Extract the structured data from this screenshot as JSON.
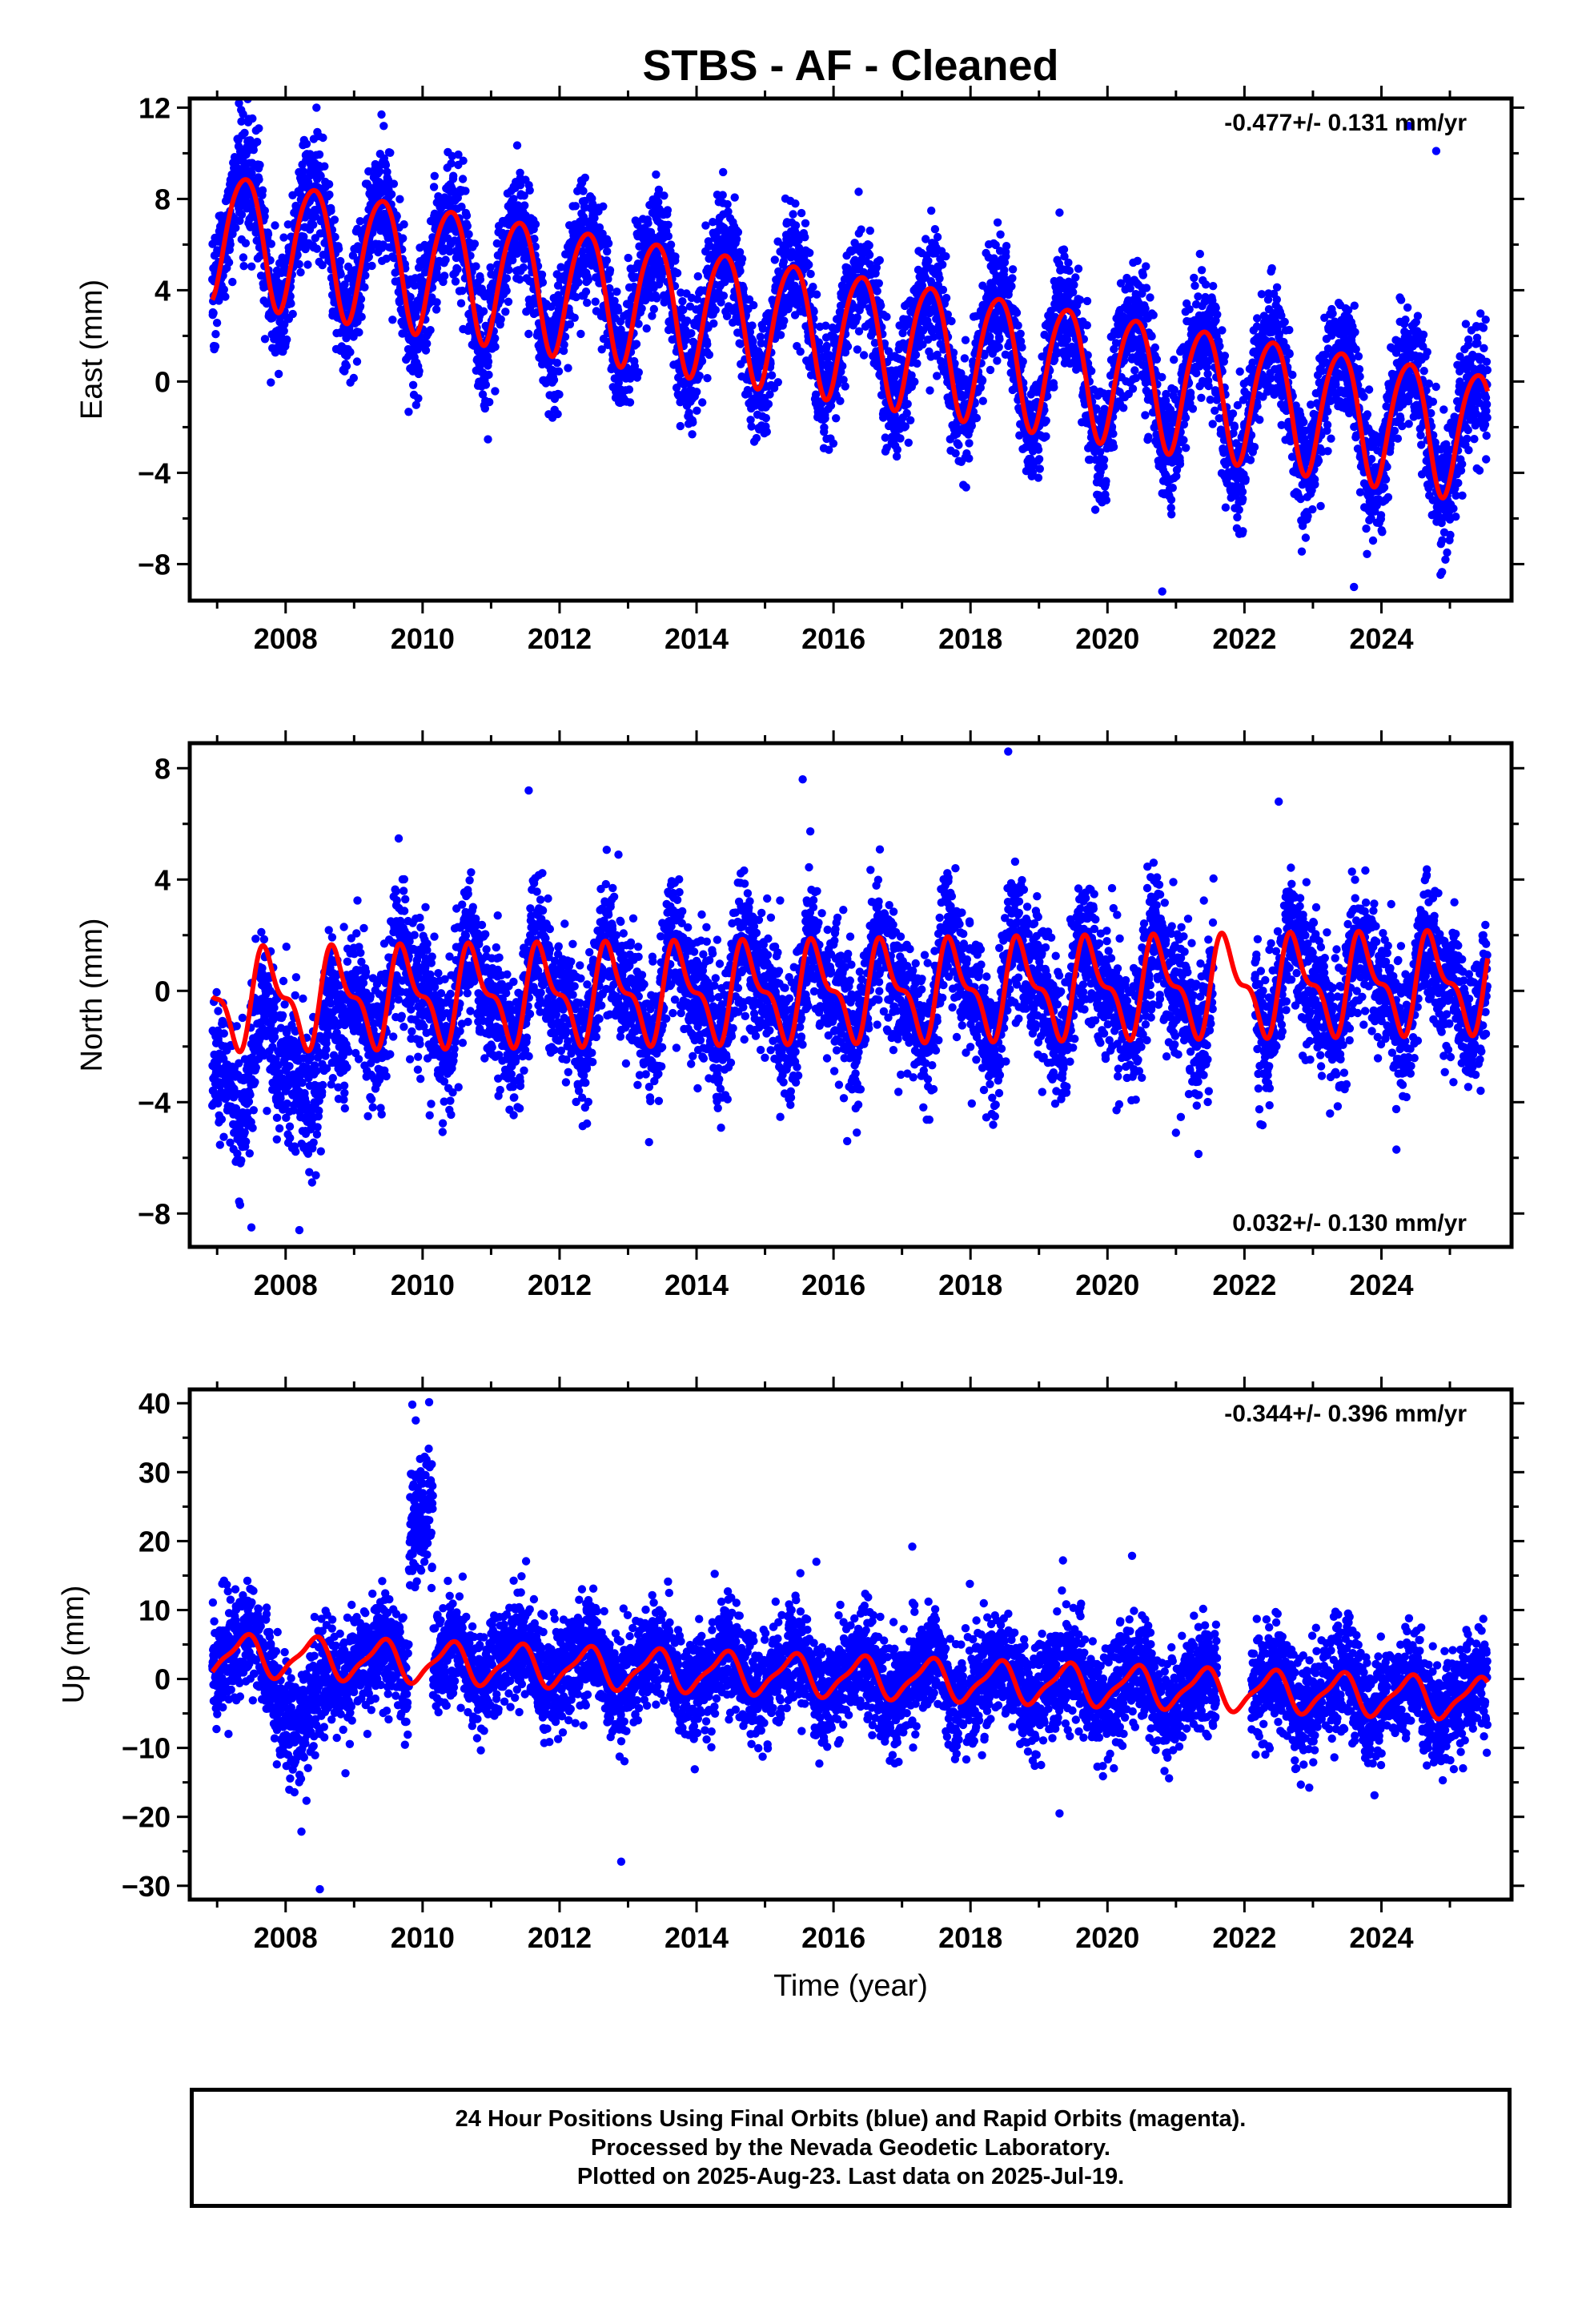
{
  "chart_data": [
    {
      "type": "scatter",
      "title": "STBS  - AF - Cleaned",
      "ylabel": "East (mm)",
      "xlabel": "",
      "annotation": "-0.477+/- 0.131 mm/yr",
      "annotation_position": "top-right",
      "xlim": [
        2006.6,
        2025.9
      ],
      "ylim": [
        -9.6,
        12.4
      ],
      "xticks": [
        2008,
        2010,
        2012,
        2014,
        2016,
        2018,
        2020,
        2022,
        2024
      ],
      "yticks": [
        -8,
        -4,
        0,
        4,
        8,
        12
      ],
      "series_colors": {
        "observations": "#0000ff",
        "model": "#ff0000"
      },
      "model": {
        "start": 2006.93,
        "end": 2025.55,
        "intercept": 6.6,
        "rate": -0.477,
        "annual_amp": 2.8,
        "annual_phase": 0.15,
        "semiannual_amp": 0.35,
        "semiannual_phase": 0.5
      },
      "noise_sd": 1.3,
      "outliers": [
        [
          2007.35,
          11.9
        ],
        [
          2008.45,
          12.0
        ],
        [
          2009.4,
          11.7
        ],
        [
          2019.3,
          7.4
        ],
        [
          2024.4,
          11.2
        ],
        [
          2024.8,
          10.1
        ],
        [
          2020.8,
          -9.2
        ],
        [
          2023.6,
          -9.0
        ]
      ]
    },
    {
      "type": "scatter",
      "title": "",
      "ylabel": "North (mm)",
      "xlabel": "",
      "annotation": "0.032+/- 0.130 mm/yr",
      "annotation_position": "bottom-right",
      "xlim": [
        2006.6,
        2025.9
      ],
      "ylim": [
        -9.2,
        8.9
      ],
      "xticks": [
        2008,
        2010,
        2012,
        2014,
        2016,
        2018,
        2020,
        2022,
        2024
      ],
      "yticks": [
        -8,
        -4,
        0,
        4,
        8
      ],
      "series_colors": {
        "observations": "#0000ff",
        "model": "#ff0000"
      },
      "model": {
        "start": 2006.93,
        "end": 2025.55,
        "intercept": -0.3,
        "rate": 0.032,
        "annual_amp": 1.5,
        "annual_phase": 0.5,
        "semiannual_amp": 0.7,
        "semiannual_phase": 0.5
      },
      "noise_sd": 1.2,
      "outliers": [
        [
          2018.55,
          8.6
        ],
        [
          2011.55,
          7.2
        ],
        [
          2015.55,
          7.6
        ],
        [
          2007.5,
          -8.5
        ],
        [
          2008.2,
          -8.6
        ],
        [
          2022.5,
          6.8
        ],
        [
          2016.2,
          -5.4
        ],
        [
          2021.0,
          -5.1
        ]
      ]
    },
    {
      "type": "scatter",
      "title": "",
      "ylabel": "Up (mm)",
      "xlabel": "Time (year)",
      "annotation": "-0.344+/- 0.396 mm/yr",
      "annotation_position": "top-right",
      "xlim": [
        2006.6,
        2025.9
      ],
      "ylim": [
        -32,
        42
      ],
      "xticks": [
        2008,
        2010,
        2012,
        2014,
        2016,
        2018,
        2020,
        2022,
        2024
      ],
      "yticks": [
        -30,
        -20,
        -10,
        0,
        10,
        20,
        30,
        40
      ],
      "series_colors": {
        "observations": "#0000ff",
        "model": "#ff0000"
      },
      "model": {
        "start": 2006.93,
        "end": 2025.55,
        "intercept": 3.5,
        "rate": -0.344,
        "annual_amp": 2.8,
        "annual_phase": 0.15,
        "semiannual_amp": 0.8,
        "semiannual_phase": 0.4
      },
      "noise_sd": 3.8,
      "outliers": [
        [
          2009.85,
          39.8
        ],
        [
          2009.9,
          37.5
        ],
        [
          2012.9,
          -26.5
        ],
        [
          2019.3,
          -19.5
        ],
        [
          2008.5,
          -30.5
        ],
        [
          2017.15,
          19.2
        ],
        [
          2015.75,
          17.0
        ],
        [
          2019.35,
          17.2
        ]
      ]
    }
  ],
  "footer": {
    "line1": "24 Hour Positions Using Final Orbits (blue) and Rapid Orbits (magenta).",
    "line2": "Processed by the Nevada Geodetic Laboratory.",
    "line3": "Plotted on 2025-Aug-23. Last data on 2025-Jul-19."
  }
}
